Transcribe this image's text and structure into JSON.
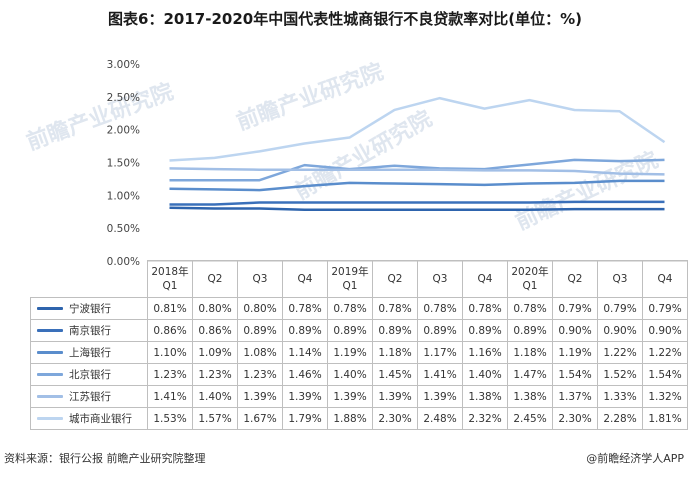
{
  "title": "图表6：2017-2020年中国代表性城商银行不良贷款率对比(单位：%)",
  "source": "资料来源：银行公报 前瞻产业研究院整理",
  "credit": "@前瞻经济学人APP",
  "watermark": "前瞻产业研究院",
  "chart_data": {
    "type": "line",
    "title": "图表6：2017-2020年中国代表性城商银行不良贷款率对比(单位：%)",
    "categories": [
      "2018年Q1",
      "Q2",
      "Q3",
      "Q4",
      "2019年Q1",
      "Q2",
      "Q3",
      "Q4",
      "2020年Q1",
      "Q2",
      "Q3",
      "Q4"
    ],
    "ylim": [
      0,
      3
    ],
    "yticks": [
      "0.00%",
      "0.50%",
      "1.00%",
      "1.50%",
      "2.00%",
      "2.50%",
      "3.00%"
    ],
    "grid": false,
    "legend": "data-table",
    "series": [
      {
        "name": "宁波银行",
        "color": "#2e64ad",
        "labels": [
          "0.81%",
          "0.80%",
          "0.80%",
          "0.78%",
          "0.78%",
          "0.78%",
          "0.78%",
          "0.78%",
          "0.78%",
          "0.79%",
          "0.79%",
          "0.79%"
        ],
        "values": [
          0.81,
          0.8,
          0.8,
          0.78,
          0.78,
          0.78,
          0.78,
          0.78,
          0.78,
          0.79,
          0.79,
          0.79
        ]
      },
      {
        "name": "南京银行",
        "color": "#3a70ba",
        "labels": [
          "0.86%",
          "0.86%",
          "0.89%",
          "0.89%",
          "0.89%",
          "0.89%",
          "0.89%",
          "0.89%",
          "0.89%",
          "0.90%",
          "0.90%",
          "0.90%"
        ],
        "values": [
          0.86,
          0.86,
          0.89,
          0.89,
          0.89,
          0.89,
          0.89,
          0.89,
          0.89,
          0.9,
          0.9,
          0.9
        ]
      },
      {
        "name": "上海银行",
        "color": "#5a8dcc",
        "labels": [
          "1.10%",
          "1.09%",
          "1.08%",
          "1.14%",
          "1.19%",
          "1.18%",
          "1.17%",
          "1.16%",
          "1.18%",
          "1.19%",
          "1.22%",
          "1.22%"
        ],
        "values": [
          1.1,
          1.09,
          1.08,
          1.14,
          1.19,
          1.18,
          1.17,
          1.16,
          1.18,
          1.19,
          1.22,
          1.22
        ]
      },
      {
        "name": "北京银行",
        "color": "#7ea7db",
        "labels": [
          "1.23%",
          "1.23%",
          "1.23%",
          "1.46%",
          "1.40%",
          "1.45%",
          "1.41%",
          "1.40%",
          "1.47%",
          "1.54%",
          "1.52%",
          "1.54%"
        ],
        "values": [
          1.23,
          1.23,
          1.23,
          1.46,
          1.4,
          1.45,
          1.41,
          1.4,
          1.47,
          1.54,
          1.52,
          1.54
        ]
      },
      {
        "name": "江苏银行",
        "color": "#a2bfe6",
        "labels": [
          "1.41%",
          "1.40%",
          "1.39%",
          "1.39%",
          "1.39%",
          "1.39%",
          "1.39%",
          "1.38%",
          "1.38%",
          "1.37%",
          "1.33%",
          "1.32%"
        ],
        "values": [
          1.41,
          1.4,
          1.39,
          1.39,
          1.39,
          1.39,
          1.39,
          1.38,
          1.38,
          1.37,
          1.33,
          1.32
        ]
      },
      {
        "name": "城市商业银行",
        "color": "#bdd5f0",
        "labels": [
          "1.53%",
          "1.57%",
          "1.67%",
          "1.79%",
          "1.88%",
          "2.30%",
          "2.48%",
          "2.32%",
          "2.45%",
          "2.30%",
          "2.28%",
          "1.81%"
        ],
        "values": [
          1.53,
          1.57,
          1.67,
          1.79,
          1.88,
          2.3,
          2.48,
          2.32,
          2.45,
          2.3,
          2.28,
          1.81
        ]
      }
    ]
  }
}
